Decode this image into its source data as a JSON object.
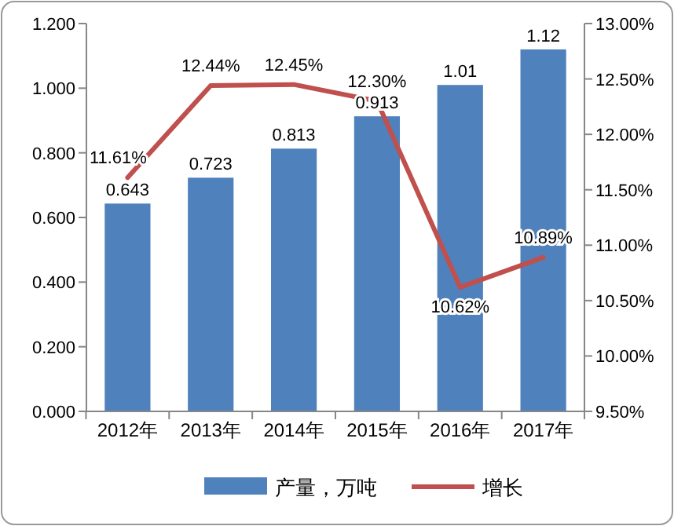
{
  "chart_data": {
    "type": "bar",
    "categories": [
      "2012年",
      "2013年",
      "2014年",
      "2015年",
      "2016年",
      "2017年"
    ],
    "series": [
      {
        "name": "产量，万吨",
        "color": "#4f81bd",
        "values": [
          0.643,
          0.723,
          0.813,
          0.913,
          1.01,
          1.12
        ],
        "value_labels": [
          "0.643",
          "0.723",
          "0.813",
          "0.913",
          "1.01",
          "1.12"
        ]
      },
      {
        "name": "增长",
        "type": "line",
        "axis": "y2",
        "color": "#c0504d",
        "values": [
          11.61,
          12.44,
          12.45,
          12.3,
          10.62,
          10.89
        ],
        "value_labels": [
          "11.61%",
          "12.44%",
          "12.45%",
          "12.30%",
          "10.62%",
          "10.89%"
        ]
      }
    ],
    "ylim": [
      0,
      1.2
    ],
    "yticks": [
      {
        "value": 0,
        "label": "0.000"
      },
      {
        "value": 0.2,
        "label": "0.200"
      },
      {
        "value": 0.4,
        "label": "0.400"
      },
      {
        "value": 0.6,
        "label": "0.600"
      },
      {
        "value": 0.8,
        "label": "0.800"
      },
      {
        "value": 1.0,
        "label": "1.000"
      },
      {
        "value": 1.2,
        "label": "1.200"
      }
    ],
    "y2lim": [
      9.5,
      13
    ],
    "y2ticks": [
      {
        "value": 9.5,
        "label": "9.50%"
      },
      {
        "value": 10,
        "label": "10.00%"
      },
      {
        "value": 10.5,
        "label": "10.50%"
      },
      {
        "value": 11,
        "label": "11.00%"
      },
      {
        "value": 11.5,
        "label": "11.50%"
      },
      {
        "value": 12,
        "label": "12.00%"
      },
      {
        "value": 12.5,
        "label": "12.50%"
      },
      {
        "value": 13,
        "label": "13.00%"
      }
    ],
    "legend": "bottom",
    "marker": "none"
  }
}
